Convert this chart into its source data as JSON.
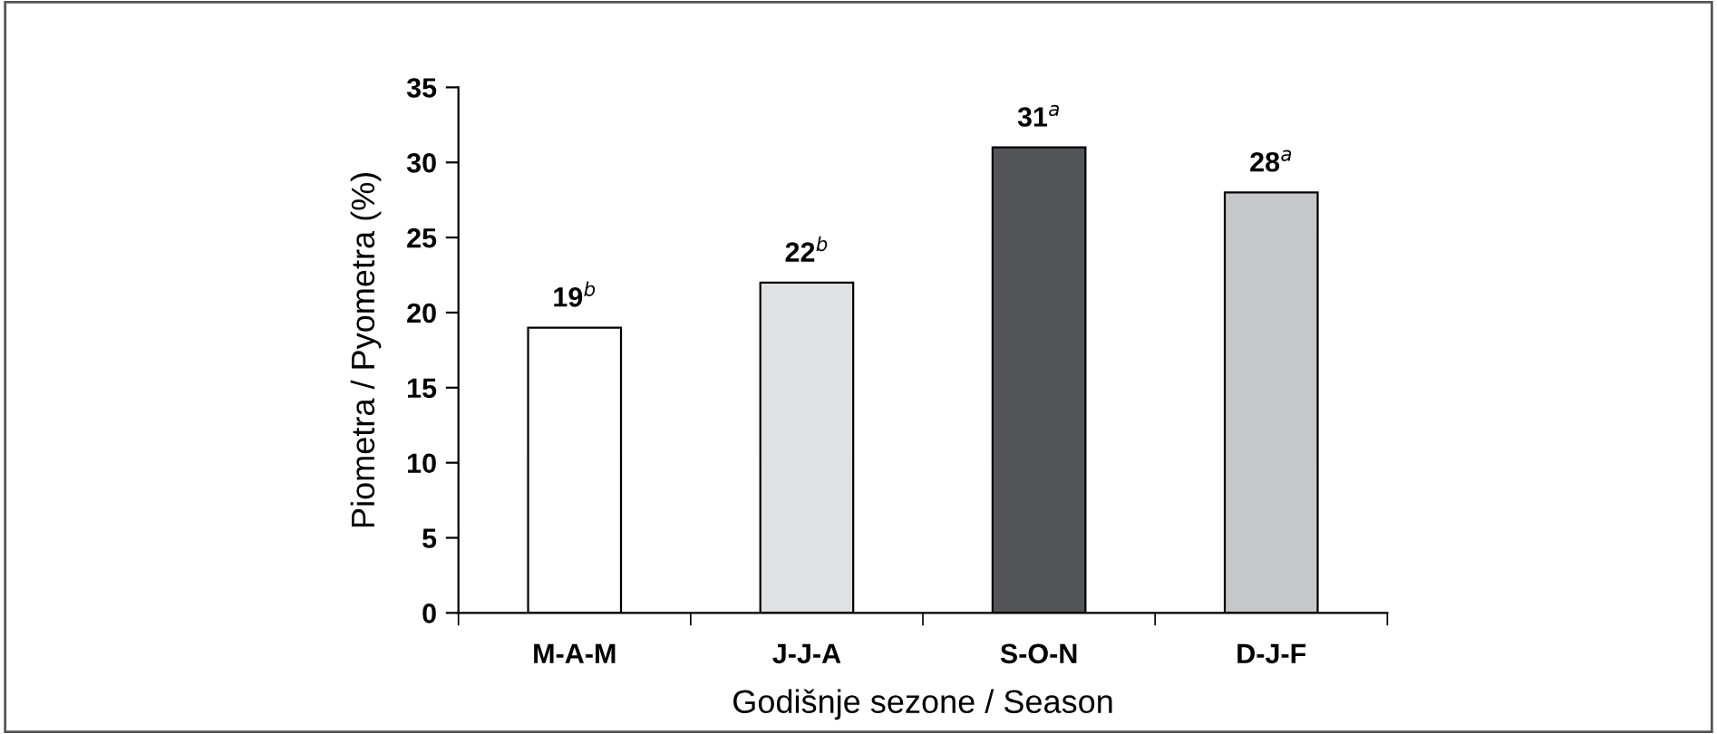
{
  "chart_data": {
    "type": "bar",
    "categories": [
      "M-A-M",
      "J-J-A",
      "S-O-N",
      "D-J-F"
    ],
    "values": [
      19,
      22,
      31,
      28
    ],
    "colors": [
      "#ffffff",
      "#e0e1e3",
      "#545557",
      "#c6c7c9"
    ],
    "value_labels": [
      "19$^{b}$",
      "22$^{b}$",
      "31$^{a}$",
      "28$^{a}$"
    ],
    "xlabel": "Godišnje sezone / Season",
    "ylabel": "Piometra / Pyometra (%)",
    "ylim": [
      0,
      35
    ],
    "yticks": [
      0,
      5,
      10,
      15,
      20,
      25,
      30,
      35
    ],
    "grid": false,
    "legend": false
  }
}
